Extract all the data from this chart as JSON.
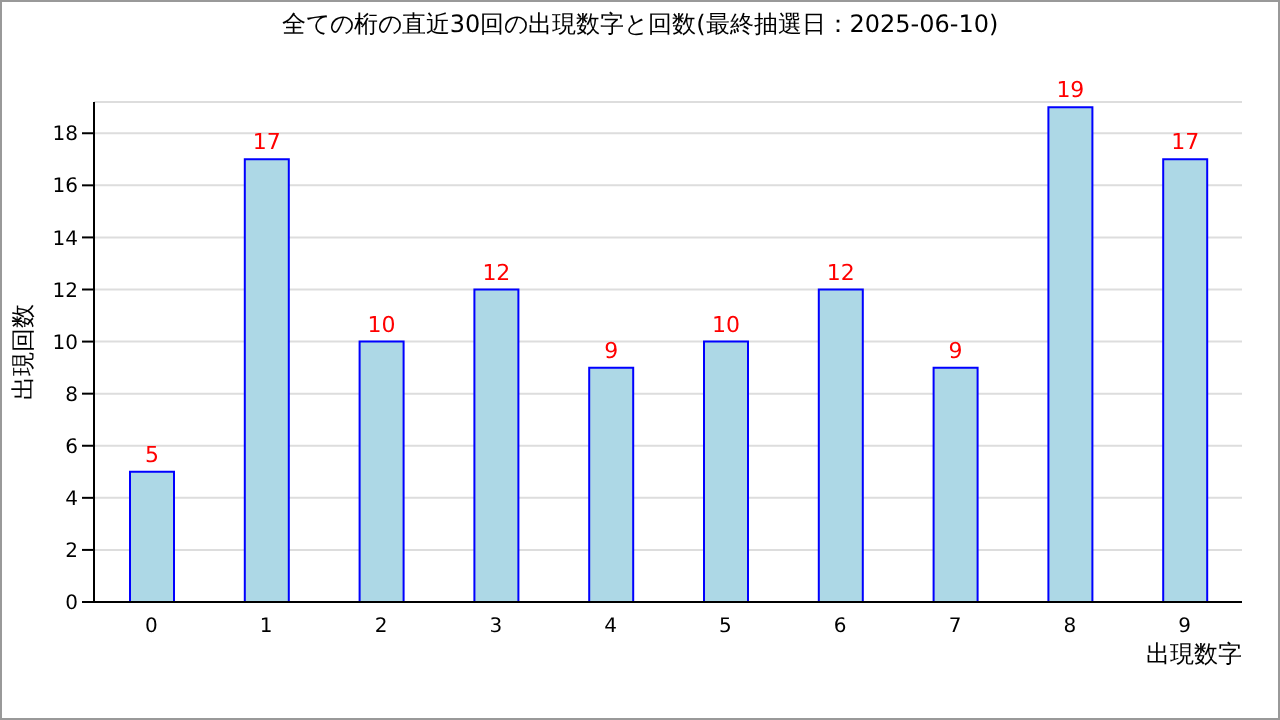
{
  "chart_data": {
    "type": "bar",
    "title": "全ての桁の直近30回の出現数字と回数(最終抽選日：2025-06-10)",
    "xlabel": "出現数字",
    "ylabel": "出現回数",
    "categories": [
      "0",
      "1",
      "2",
      "3",
      "4",
      "5",
      "6",
      "7",
      "8",
      "9"
    ],
    "values": [
      5,
      17,
      10,
      12,
      9,
      10,
      12,
      9,
      19,
      17
    ],
    "color": "#add8e6",
    "ylim": [
      0,
      19.2
    ],
    "yticks": [
      0,
      2,
      4,
      6,
      8,
      10,
      12,
      14,
      16,
      18
    ],
    "grid": "y",
    "data_labels": true
  }
}
